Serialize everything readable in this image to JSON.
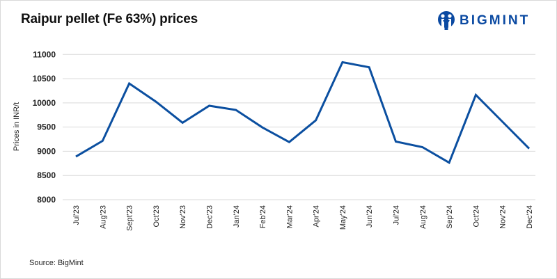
{
  "header": {
    "title": "Raipur pellet (Fe 63%) prices",
    "logo_text": "BIGMINT",
    "logo_icon": "bigmint-logo-icon"
  },
  "footer": {
    "source": "Source: BigMint"
  },
  "colors": {
    "line": "#0b4fa0",
    "grid": "#d9d9d9",
    "brand": "#0b4aa2"
  },
  "chart_data": {
    "type": "line",
    "title": "Raipur pellet (Fe 63%) prices",
    "xlabel": "",
    "ylabel": "Prices in INR/t",
    "ylim": [
      8000,
      11000
    ],
    "yticks": [
      8000,
      8500,
      9000,
      9500,
      10000,
      10500,
      11000
    ],
    "grid": true,
    "legend": null,
    "categories": [
      "Jul'23",
      "Aug'23",
      "Sept'23",
      "Oct'23",
      "Nov'23",
      "Dec'23",
      "Jan'24",
      "Feb'24",
      "Mar'24",
      "Apr'24",
      "May'24",
      "Jun'24",
      "Jul'24",
      "Aug'24",
      "Sep'24",
      "Oct'24",
      "Nov'24",
      "Dec'24"
    ],
    "series": [
      {
        "name": "Raipur pellet (Fe 63%)",
        "values": [
          8890,
          9215,
          10400,
          10025,
          9590,
          9940,
          9855,
          9490,
          9190,
          9640,
          10840,
          10735,
          9200,
          9085,
          8765,
          10165,
          9610,
          9055
        ]
      }
    ],
    "source": "Source: BigMint"
  }
}
